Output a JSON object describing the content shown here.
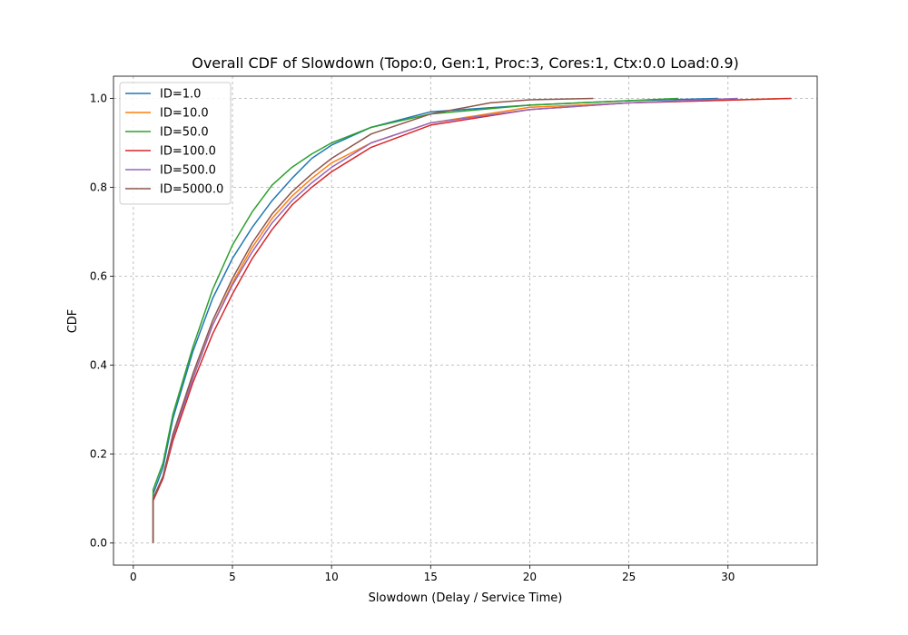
{
  "chart_data": {
    "type": "line",
    "title": "Overall CDF of Slowdown (Topo:0, Gen:1, Proc:3, Cores:1, Ctx:0.0 Load:0.9)",
    "xlabel": "Slowdown (Delay / Service Time)",
    "ylabel": "CDF",
    "xlim": [
      -1,
      34.5
    ],
    "ylim": [
      -0.05,
      1.05
    ],
    "xticks": [
      0,
      5,
      10,
      15,
      20,
      25,
      30
    ],
    "yticks": [
      0.0,
      0.2,
      0.4,
      0.6,
      0.8,
      1.0
    ],
    "xtick_labels": [
      "0",
      "5",
      "10",
      "15",
      "20",
      "25",
      "30"
    ],
    "ytick_labels": [
      "0.0",
      "0.2",
      "0.4",
      "0.6",
      "0.8",
      "1.0"
    ],
    "grid": true,
    "legend_position": "top-left",
    "series": [
      {
        "name": "ID=1.0",
        "color": "#1f77b4",
        "x": [
          1,
          1,
          1.5,
          2,
          3,
          4,
          5,
          6,
          7,
          8,
          9,
          10,
          12,
          15,
          20,
          25,
          29.5
        ],
        "y": [
          0,
          0.11,
          0.17,
          0.28,
          0.43,
          0.55,
          0.64,
          0.71,
          0.77,
          0.82,
          0.865,
          0.895,
          0.935,
          0.97,
          0.985,
          0.995,
          1.0
        ]
      },
      {
        "name": "ID=10.0",
        "color": "#ff7f0e",
        "x": [
          1,
          1,
          1.5,
          2,
          3,
          4,
          5,
          6,
          7,
          8,
          9,
          10,
          12,
          15,
          20,
          25,
          33
        ],
        "y": [
          0,
          0.1,
          0.15,
          0.24,
          0.37,
          0.49,
          0.585,
          0.665,
          0.73,
          0.78,
          0.82,
          0.855,
          0.9,
          0.945,
          0.98,
          0.99,
          1.0
        ]
      },
      {
        "name": "ID=50.0",
        "color": "#2ca02c",
        "x": [
          1,
          1,
          1.5,
          2,
          3,
          4,
          5,
          6,
          7,
          8,
          9,
          10,
          12,
          15,
          20,
          25,
          27.5
        ],
        "y": [
          0,
          0.12,
          0.18,
          0.29,
          0.44,
          0.57,
          0.67,
          0.745,
          0.805,
          0.845,
          0.875,
          0.9,
          0.935,
          0.965,
          0.985,
          0.995,
          1.0
        ]
      },
      {
        "name": "ID=100.0",
        "color": "#d62728",
        "x": [
          1,
          1,
          1.5,
          2,
          3,
          4,
          5,
          6,
          7,
          8,
          9,
          10,
          12,
          15,
          20,
          25,
          33.2
        ],
        "y": [
          0,
          0.095,
          0.145,
          0.23,
          0.36,
          0.47,
          0.56,
          0.64,
          0.705,
          0.76,
          0.8,
          0.835,
          0.89,
          0.94,
          0.975,
          0.99,
          1.0
        ]
      },
      {
        "name": "ID=500.0",
        "color": "#9467bd",
        "x": [
          1,
          1,
          1.5,
          2,
          3,
          4,
          5,
          6,
          7,
          8,
          9,
          10,
          12,
          15,
          20,
          25,
          30.5
        ],
        "y": [
          0,
          0.1,
          0.15,
          0.24,
          0.37,
          0.49,
          0.58,
          0.655,
          0.72,
          0.77,
          0.81,
          0.845,
          0.9,
          0.945,
          0.975,
          0.99,
          1.0
        ]
      },
      {
        "name": "ID=5000.0",
        "color": "#8c564b",
        "x": [
          1,
          1,
          1.5,
          2,
          3,
          4,
          5,
          6,
          7,
          8,
          9,
          10,
          12,
          15,
          18,
          20,
          23.2
        ],
        "y": [
          0,
          0.1,
          0.15,
          0.245,
          0.38,
          0.5,
          0.595,
          0.675,
          0.74,
          0.79,
          0.83,
          0.865,
          0.92,
          0.965,
          0.99,
          0.997,
          1.0
        ]
      }
    ]
  }
}
